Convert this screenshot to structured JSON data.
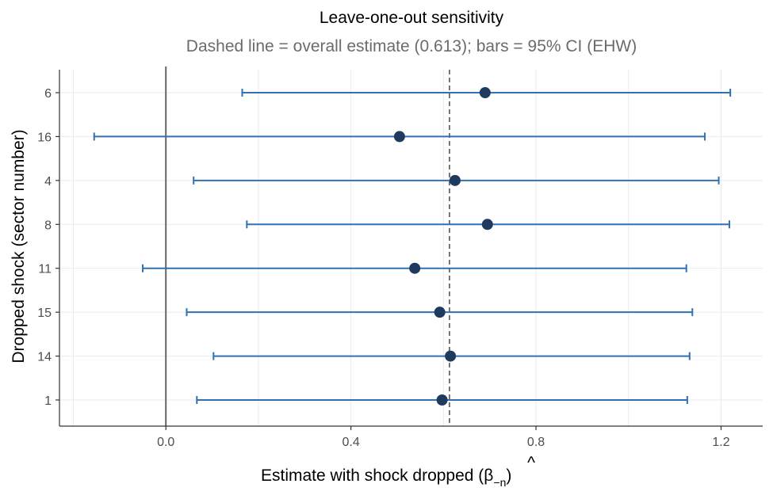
{
  "chart_data": {
    "type": "scatter",
    "title": "Leave-one-out sensitivity",
    "subtitle": "Dashed line = overall estimate (0.613);  bars = 95% CI (EHW)",
    "xlabel": "Estimate with shock dropped (",
    "xlabel_symbol": "β",
    "xlabel_hat": "^",
    "xlabel_sub": "−n",
    "xlabel_close": ")",
    "ylabel": "Dropped shock (sector number)",
    "xlim": [
      -0.23,
      1.29
    ],
    "xticks": [
      0.0,
      0.4,
      0.8,
      1.2
    ],
    "xtick_labels": [
      "0.0",
      "0.4",
      "0.8",
      "1.2"
    ],
    "reference_lines": {
      "zero": 0.0,
      "overall_estimate": 0.613
    },
    "grid": true,
    "points": [
      {
        "label": "6",
        "estimate": 0.69,
        "ci_low": 0.165,
        "ci_high": 1.22
      },
      {
        "label": "16",
        "estimate": 0.505,
        "ci_low": -0.155,
        "ci_high": 1.165
      },
      {
        "label": "4",
        "estimate": 0.625,
        "ci_low": 0.06,
        "ci_high": 1.195
      },
      {
        "label": "8",
        "estimate": 0.695,
        "ci_low": 0.175,
        "ci_high": 1.218
      },
      {
        "label": "11",
        "estimate": 0.538,
        "ci_low": -0.05,
        "ci_high": 1.125
      },
      {
        "label": "15",
        "estimate": 0.592,
        "ci_low": 0.045,
        "ci_high": 1.138
      },
      {
        "label": "14",
        "estimate": 0.615,
        "ci_low": 0.103,
        "ci_high": 1.132
      },
      {
        "label": "1",
        "estimate": 0.597,
        "ci_low": 0.067,
        "ci_high": 1.127
      }
    ],
    "colors": {
      "point": "#1f3a5f",
      "errorbar": "#3070b3",
      "zero_line": "#666666",
      "dashed_line": "#555555"
    }
  }
}
